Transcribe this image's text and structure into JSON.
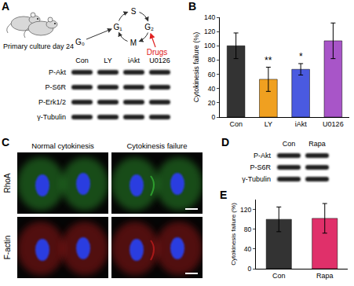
{
  "panels": {
    "A": {
      "label": "A",
      "caption": "Primary culture day 24",
      "cycle": [
        "G₀",
        "G₁",
        "S",
        "G₂",
        "M"
      ],
      "drugs": "Drugs",
      "blot": {
        "lanes": [
          "Con",
          "LY",
          "iAkt",
          "U0126"
        ],
        "rows": [
          "P-Akt",
          "P-S6R",
          "P-Erk1/2",
          "γ-Tubulin"
        ]
      }
    },
    "C": {
      "label": "C",
      "columns": [
        "Normal cytokinesis",
        "Cytokinesis failure"
      ],
      "rows": [
        {
          "name": "RhoA",
          "color": "#3ccf3c"
        },
        {
          "name": "F-actin",
          "color": "#e02020"
        }
      ]
    },
    "D": {
      "label": "D",
      "blot": {
        "lanes": [
          "Con",
          "Rapa"
        ],
        "rows": [
          "P-Akt",
          "P-S6R",
          "γ-Tubulin"
        ]
      }
    }
  },
  "chart_data": [
    {
      "label": "B",
      "type": "bar",
      "ylabel": "Cytokinesis failure (%)",
      "categories": [
        "Con",
        "LY",
        "iAkt",
        "U0126"
      ],
      "values": [
        100,
        53,
        67,
        107
      ],
      "errors": [
        18,
        17,
        8,
        25
      ],
      "colors": [
        "#333333",
        "#f0a020",
        "#4a5ae0",
        "#a855c8"
      ],
      "ylim": [
        0,
        140
      ],
      "yticks": [
        0,
        20,
        40,
        60,
        80,
        100,
        120,
        140
      ],
      "annotations": [
        {
          "category": "LY",
          "text": "**"
        },
        {
          "category": "iAkt",
          "text": "*"
        }
      ]
    },
    {
      "label": "E",
      "type": "bar",
      "ylabel": "Cytokinesis failure (%)",
      "categories": [
        "Con",
        "Rapa"
      ],
      "values": [
        100,
        102
      ],
      "errors": [
        25,
        30
      ],
      "colors": [
        "#333333",
        "#e0306a"
      ],
      "ylim": [
        0,
        140
      ],
      "yticks": [
        0,
        40,
        80,
        120
      ]
    }
  ]
}
